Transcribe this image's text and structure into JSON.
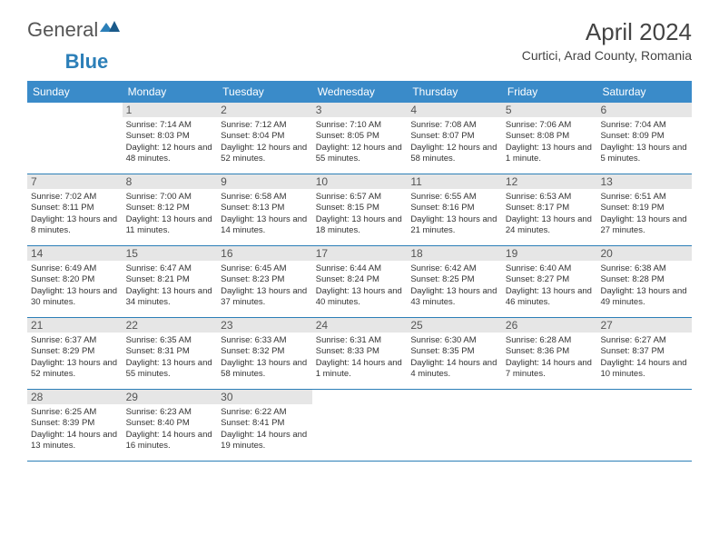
{
  "logo": {
    "part1": "General",
    "part2": "Blue"
  },
  "title": "April 2024",
  "location": "Curtici, Arad County, Romania",
  "colors": {
    "header_bg": "#3a8bc9",
    "header_text": "#ffffff",
    "rule": "#2c7fb8",
    "daynum_bg": "#e6e6e6",
    "logo_blue": "#2c7fb8"
  },
  "day_names": [
    "Sunday",
    "Monday",
    "Tuesday",
    "Wednesday",
    "Thursday",
    "Friday",
    "Saturday"
  ],
  "first_day_index": 1,
  "days": [
    {
      "n": "1",
      "sunrise": "7:14 AM",
      "sunset": "8:03 PM",
      "daylight": "12 hours and 48 minutes."
    },
    {
      "n": "2",
      "sunrise": "7:12 AM",
      "sunset": "8:04 PM",
      "daylight": "12 hours and 52 minutes."
    },
    {
      "n": "3",
      "sunrise": "7:10 AM",
      "sunset": "8:05 PM",
      "daylight": "12 hours and 55 minutes."
    },
    {
      "n": "4",
      "sunrise": "7:08 AM",
      "sunset": "8:07 PM",
      "daylight": "12 hours and 58 minutes."
    },
    {
      "n": "5",
      "sunrise": "7:06 AM",
      "sunset": "8:08 PM",
      "daylight": "13 hours and 1 minute."
    },
    {
      "n": "6",
      "sunrise": "7:04 AM",
      "sunset": "8:09 PM",
      "daylight": "13 hours and 5 minutes."
    },
    {
      "n": "7",
      "sunrise": "7:02 AM",
      "sunset": "8:11 PM",
      "daylight": "13 hours and 8 minutes."
    },
    {
      "n": "8",
      "sunrise": "7:00 AM",
      "sunset": "8:12 PM",
      "daylight": "13 hours and 11 minutes."
    },
    {
      "n": "9",
      "sunrise": "6:58 AM",
      "sunset": "8:13 PM",
      "daylight": "13 hours and 14 minutes."
    },
    {
      "n": "10",
      "sunrise": "6:57 AM",
      "sunset": "8:15 PM",
      "daylight": "13 hours and 18 minutes."
    },
    {
      "n": "11",
      "sunrise": "6:55 AM",
      "sunset": "8:16 PM",
      "daylight": "13 hours and 21 minutes."
    },
    {
      "n": "12",
      "sunrise": "6:53 AM",
      "sunset": "8:17 PM",
      "daylight": "13 hours and 24 minutes."
    },
    {
      "n": "13",
      "sunrise": "6:51 AM",
      "sunset": "8:19 PM",
      "daylight": "13 hours and 27 minutes."
    },
    {
      "n": "14",
      "sunrise": "6:49 AM",
      "sunset": "8:20 PM",
      "daylight": "13 hours and 30 minutes."
    },
    {
      "n": "15",
      "sunrise": "6:47 AM",
      "sunset": "8:21 PM",
      "daylight": "13 hours and 34 minutes."
    },
    {
      "n": "16",
      "sunrise": "6:45 AM",
      "sunset": "8:23 PM",
      "daylight": "13 hours and 37 minutes."
    },
    {
      "n": "17",
      "sunrise": "6:44 AM",
      "sunset": "8:24 PM",
      "daylight": "13 hours and 40 minutes."
    },
    {
      "n": "18",
      "sunrise": "6:42 AM",
      "sunset": "8:25 PM",
      "daylight": "13 hours and 43 minutes."
    },
    {
      "n": "19",
      "sunrise": "6:40 AM",
      "sunset": "8:27 PM",
      "daylight": "13 hours and 46 minutes."
    },
    {
      "n": "20",
      "sunrise": "6:38 AM",
      "sunset": "8:28 PM",
      "daylight": "13 hours and 49 minutes."
    },
    {
      "n": "21",
      "sunrise": "6:37 AM",
      "sunset": "8:29 PM",
      "daylight": "13 hours and 52 minutes."
    },
    {
      "n": "22",
      "sunrise": "6:35 AM",
      "sunset": "8:31 PM",
      "daylight": "13 hours and 55 minutes."
    },
    {
      "n": "23",
      "sunrise": "6:33 AM",
      "sunset": "8:32 PM",
      "daylight": "13 hours and 58 minutes."
    },
    {
      "n": "24",
      "sunrise": "6:31 AM",
      "sunset": "8:33 PM",
      "daylight": "14 hours and 1 minute."
    },
    {
      "n": "25",
      "sunrise": "6:30 AM",
      "sunset": "8:35 PM",
      "daylight": "14 hours and 4 minutes."
    },
    {
      "n": "26",
      "sunrise": "6:28 AM",
      "sunset": "8:36 PM",
      "daylight": "14 hours and 7 minutes."
    },
    {
      "n": "27",
      "sunrise": "6:27 AM",
      "sunset": "8:37 PM",
      "daylight": "14 hours and 10 minutes."
    },
    {
      "n": "28",
      "sunrise": "6:25 AM",
      "sunset": "8:39 PM",
      "daylight": "14 hours and 13 minutes."
    },
    {
      "n": "29",
      "sunrise": "6:23 AM",
      "sunset": "8:40 PM",
      "daylight": "14 hours and 16 minutes."
    },
    {
      "n": "30",
      "sunrise": "6:22 AM",
      "sunset": "8:41 PM",
      "daylight": "14 hours and 19 minutes."
    }
  ],
  "labels": {
    "sunrise": "Sunrise:",
    "sunset": "Sunset:",
    "daylight": "Daylight:"
  }
}
